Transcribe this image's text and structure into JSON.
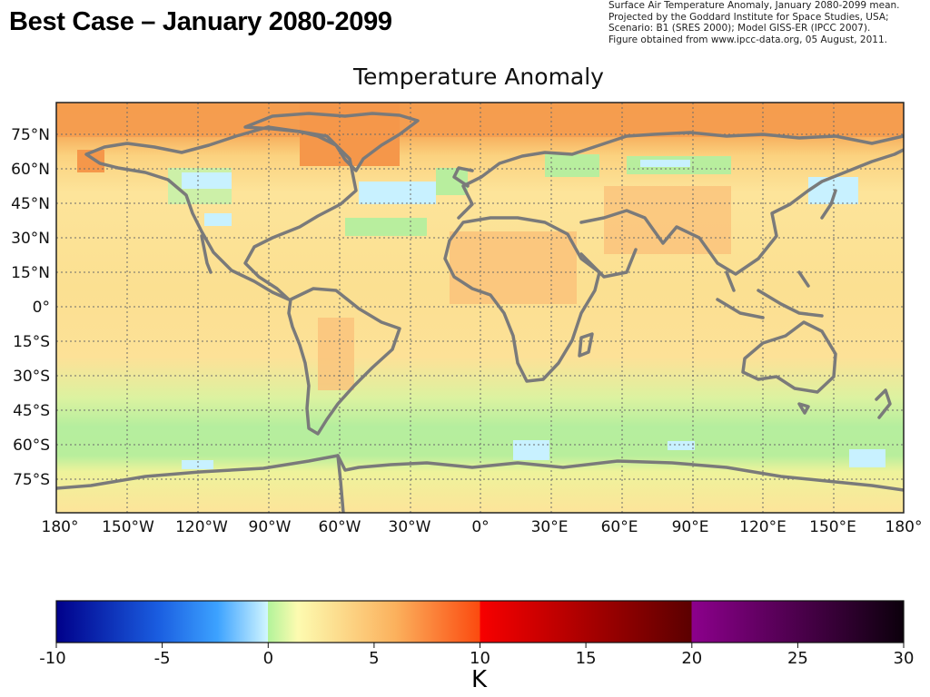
{
  "slide": {
    "title": "Best Case – January 2080-2099",
    "credit_lines": [
      "Surface Air Temperature Anomaly, January 2080-2099 mean.",
      "Projected by the Goddard Institute for Space Studies, USA;",
      "Scenario: B1 (SRES 2000); Model GISS-ER (IPCC 2007).",
      "Figure obtained from www.ipcc-data.org, 05 August, 2011."
    ]
  },
  "map": {
    "title": "Temperature Anomaly",
    "lat_labels": [
      "75°N",
      "60°N",
      "45°N",
      "30°N",
      "15°N",
      "0°",
      "15°S",
      "30°S",
      "45°S",
      "60°S",
      "75°S"
    ],
    "lon_labels": [
      "180°",
      "150°W",
      "120°W",
      "90°W",
      "60°W",
      "30°W",
      "0°",
      "30°E",
      "60°E",
      "90°E",
      "120°E",
      "150°E",
      "180°"
    ],
    "land_outline_color": "#7a7a7a",
    "grid": true
  },
  "colorbar": {
    "tick_labels": [
      "-10",
      "-5",
      "0",
      "5",
      "10",
      "15",
      "20",
      "25",
      "30"
    ],
    "unit_label": "K",
    "range": [
      -10,
      30
    ]
  }
}
